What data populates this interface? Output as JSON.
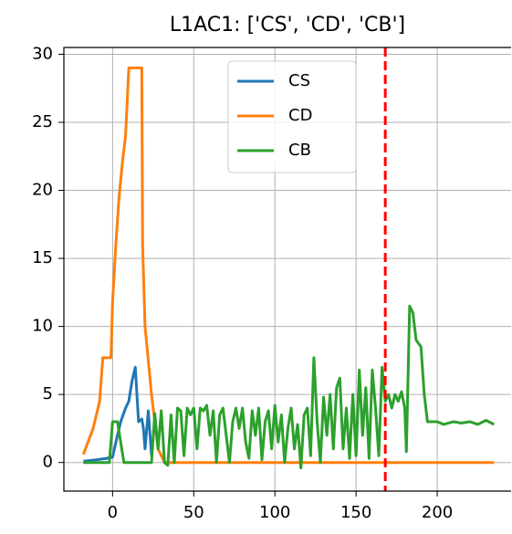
{
  "chart_data": {
    "type": "line",
    "title": "L1AC1: ['CS', 'CD', 'CB']",
    "xlim": [
      -30,
      245.5
    ],
    "xticks": [
      0,
      50,
      100,
      150,
      200
    ],
    "ylim": [
      -2.1,
      30.5
    ],
    "yticks": [
      0,
      5,
      10,
      15,
      20,
      25,
      30
    ],
    "grid": true,
    "legend": "upper center",
    "vline": 168,
    "vline_color": "#ff0000",
    "series": [
      {
        "name": "CS",
        "color": "#1f77b4",
        "x": [
          -18,
          -10,
          -4,
          0,
          3,
          5,
          8,
          10,
          12,
          14,
          15,
          16,
          18,
          19,
          20,
          22,
          24
        ],
        "values": [
          0.1,
          0.2,
          0.3,
          0.4,
          2,
          3,
          4,
          4.5,
          6,
          7,
          5,
          3,
          3.2,
          2.5,
          1,
          3.8,
          0.5
        ]
      },
      {
        "name": "CD",
        "color": "#ff7f0e",
        "x": [
          -18,
          -12,
          -8,
          -6,
          -1,
          0,
          2,
          4,
          6,
          8,
          10,
          18,
          18.5,
          20,
          24,
          28,
          32,
          235
        ],
        "values": [
          0.6,
          2.5,
          4.5,
          7.7,
          7.7,
          11.8,
          16,
          19.5,
          22,
          24,
          29,
          29,
          16,
          10,
          5,
          1,
          0,
          0
        ]
      },
      {
        "name": "CB",
        "color": "#2ca02c",
        "x": [
          -18,
          -2,
          0,
          3,
          5,
          7,
          24,
          26,
          28,
          30,
          32,
          34,
          36,
          38,
          40,
          42,
          44,
          46,
          48,
          50,
          52,
          54,
          56,
          58,
          60,
          62,
          64,
          66,
          68,
          70,
          72,
          74,
          76,
          78,
          80,
          82,
          84,
          86,
          88,
          90,
          92,
          94,
          96,
          98,
          100,
          102,
          104,
          106,
          108,
          110,
          112,
          114,
          116,
          118,
          120,
          122,
          124,
          126,
          128,
          130,
          132,
          134,
          136,
          138,
          140,
          142,
          144,
          146,
          148,
          150,
          152,
          154,
          156,
          158,
          160,
          162,
          164,
          166,
          168,
          170,
          172,
          174,
          176,
          178,
          180,
          181,
          183,
          185,
          187,
          190,
          192,
          194,
          200,
          204,
          210,
          215,
          220,
          225,
          230,
          235
        ],
        "values": [
          0,
          0,
          3,
          3,
          1.5,
          0,
          0,
          3.6,
          1,
          3.8,
          0,
          -0.2,
          3.5,
          0,
          4,
          3.8,
          0.5,
          4,
          3.5,
          4,
          1,
          4,
          3.8,
          4.2,
          2,
          3.8,
          0,
          3.5,
          4,
          2,
          0,
          3,
          4,
          2.5,
          4,
          1.5,
          0.3,
          3.8,
          2,
          4,
          0.2,
          3,
          3.8,
          1,
          4.2,
          1.5,
          3.5,
          0,
          2.5,
          4,
          1,
          2.8,
          -0.4,
          3.5,
          4,
          0.5,
          7.7,
          3,
          0,
          4.8,
          2,
          5,
          1,
          5.5,
          6.2,
          1,
          4,
          0.3,
          5,
          0.5,
          6.8,
          2,
          5.5,
          0.3,
          6.8,
          4,
          0.5,
          7,
          4.5,
          5,
          4,
          5,
          4.5,
          5.2,
          4,
          0.8,
          11.5,
          11,
          9,
          8.5,
          5,
          3,
          3,
          2.8,
          3,
          2.9,
          3,
          2.8,
          3.1,
          2.8
        ]
      }
    ]
  }
}
